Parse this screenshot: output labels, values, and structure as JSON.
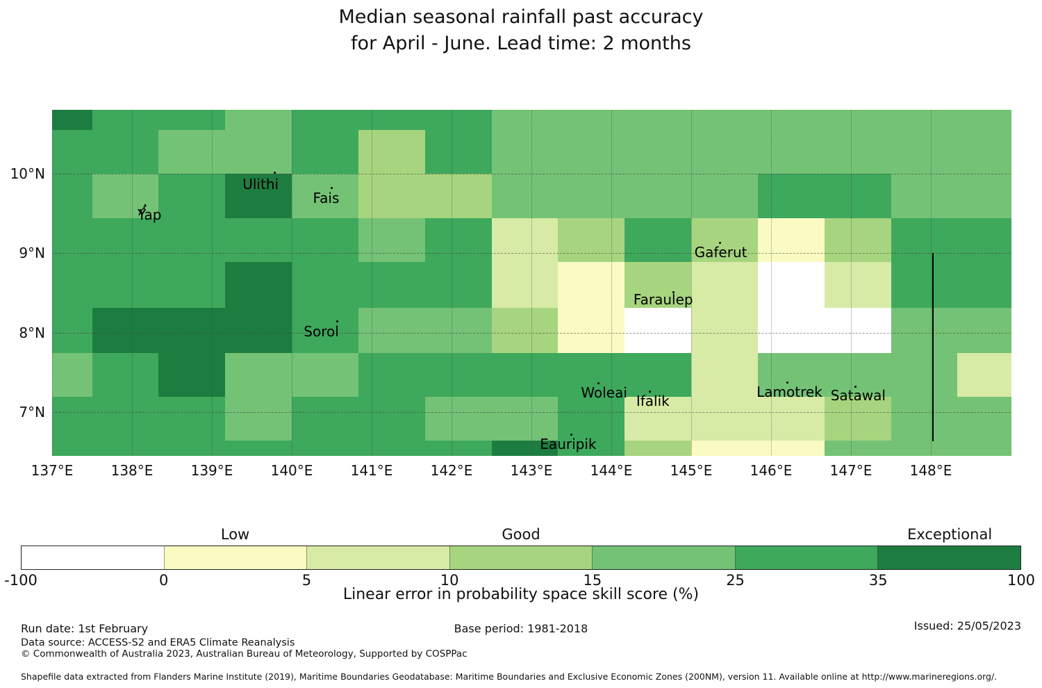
{
  "title": {
    "line1": "Median seasonal rainfall past accuracy",
    "line2": "for April - June. Lead time: 2 months"
  },
  "chart_data": {
    "type": "heatmap",
    "title": "Median seasonal rainfall past accuracy for April - June. Lead time: 2 months",
    "legend_label": "Linear error in probability space skill score (%)",
    "lon_range": [
      137.0,
      149.0
    ],
    "lat_range": [
      6.46,
      10.81
    ],
    "grid_on": true,
    "x_axis": {
      "tick_labels": [
        "137°E",
        "138°E",
        "139°E",
        "140°E",
        "141°E",
        "142°E",
        "143°E",
        "144°E",
        "145°E",
        "146°E",
        "147°E",
        "148°E"
      ],
      "tick_lons": [
        137,
        138,
        139,
        140,
        141,
        142,
        143,
        144,
        145,
        146,
        147,
        148
      ]
    },
    "y_axis": {
      "tick_labels": [
        "10°N",
        "9°N",
        "8°N",
        "7°N"
      ],
      "tick_lats": [
        10,
        9,
        8,
        7
      ]
    },
    "palette": [
      {
        "bin": "-100 to 0",
        "class": "Low",
        "color": "#ffffff"
      },
      {
        "bin": "0 to 5",
        "class": "Low",
        "color": "#f9fbc3"
      },
      {
        "bin": "5 to 10",
        "class": "Low",
        "color": "#d7eba6"
      },
      {
        "bin": "10 to 15",
        "class": "Good",
        "color": "#a7d57f"
      },
      {
        "bin": "15 to 25",
        "class": "Good",
        "color": "#74c276"
      },
      {
        "bin": "25 to 35",
        "class": "Good",
        "color": "#3ea85c"
      },
      {
        "bin": "35 to 100",
        "class": "Exceptional",
        "color": "#1d7d40"
      }
    ],
    "col_bounds_lon": [
      137.0,
      137.5,
      138.333,
      139.167,
      140.0,
      140.833,
      141.667,
      142.5,
      143.333,
      144.167,
      145.0,
      145.833,
      146.667,
      147.5,
      148.333,
      149.0
    ],
    "row_bounds_lat": [
      10.805,
      10.551,
      10.0,
      9.44,
      8.889,
      8.312,
      7.743,
      7.192,
      6.641,
      6.457
    ],
    "grid": [
      [
        6,
        5,
        5,
        4,
        5,
        5,
        5,
        4,
        4,
        4,
        4,
        4,
        4,
        4,
        4
      ],
      [
        5,
        5,
        4,
        4,
        5,
        3,
        5,
        4,
        4,
        4,
        4,
        4,
        4,
        4,
        4
      ],
      [
        5,
        4,
        5,
        6,
        4,
        3,
        3,
        4,
        4,
        4,
        4,
        5,
        5,
        4,
        4
      ],
      [
        5,
        5,
        5,
        5,
        5,
        4,
        5,
        2,
        3,
        5,
        3,
        1,
        3,
        5,
        5
      ],
      [
        5,
        5,
        5,
        6,
        5,
        5,
        5,
        2,
        1,
        3,
        2,
        0,
        2,
        5,
        5
      ],
      [
        5,
        6,
        6,
        6,
        5,
        4,
        4,
        3,
        1,
        0,
        2,
        0,
        0,
        4,
        4
      ],
      [
        4,
        5,
        6,
        4,
        4,
        5,
        5,
        5,
        5,
        5,
        2,
        4,
        4,
        4,
        2
      ],
      [
        5,
        5,
        5,
        4,
        5,
        5,
        4,
        4,
        5,
        2,
        2,
        2,
        3,
        4,
        4
      ],
      [
        5,
        5,
        5,
        5,
        5,
        5,
        5,
        6,
        5,
        3,
        1,
        1,
        4,
        4,
        4
      ]
    ],
    "islands": [
      {
        "name": "Ulithi",
        "lon": 139.61,
        "lat": 9.87,
        "dot_dx": 19,
        "dot_dy": -18,
        "marker": "dot"
      },
      {
        "name": "Fais",
        "lon": 140.43,
        "lat": 9.69,
        "dot_dx": 7,
        "dot_dy": -16,
        "marker": "dot"
      },
      {
        "name": "Yap",
        "lon": 138.22,
        "lat": 9.48,
        "dot_dx": -11,
        "dot_dy": -9,
        "marker": "squiggle"
      },
      {
        "name": "Gaferut",
        "lon": 145.37,
        "lat": 9.01,
        "dot_dx": -3,
        "dot_dy": -15,
        "marker": "dot"
      },
      {
        "name": "Faraulep",
        "lon": 144.65,
        "lat": 8.42,
        "dot_dx": 13,
        "dot_dy": -12,
        "marker": "dot"
      },
      {
        "name": "Sorol",
        "lon": 140.37,
        "lat": 8.01,
        "dot_dx": 21,
        "dot_dy": -16,
        "marker": "dot"
      },
      {
        "name": "Woleai",
        "lon": 143.91,
        "lat": 7.24,
        "dot_dx": -10,
        "dot_dy": -15,
        "marker": "dot"
      },
      {
        "name": "Ifalik",
        "lon": 144.52,
        "lat": 7.14,
        "dot_dx": -6,
        "dot_dy": -15,
        "marker": "dot"
      },
      {
        "name": "Lamotrek",
        "lon": 146.23,
        "lat": 7.25,
        "dot_dx": -4,
        "dot_dy": -15,
        "marker": "dot"
      },
      {
        "name": "Satawal",
        "lon": 147.09,
        "lat": 7.21,
        "dot_dx": -5,
        "dot_dy": -14,
        "marker": "dot"
      },
      {
        "name": "Eauripik",
        "lon": 143.46,
        "lat": 6.6,
        "dot_dx": 3,
        "dot_dy": -15,
        "marker": "dot"
      }
    ],
    "eez_line": {
      "lon": 148.02,
      "lat_from": 9.0,
      "lat_to": 6.63
    }
  },
  "colorbar": {
    "category_labels": [
      {
        "text": "Low",
        "segment": 1
      },
      {
        "text": "Good",
        "segment": 3
      },
      {
        "text": "Exceptional",
        "segment": 6
      }
    ],
    "tick_labels": [
      "-100",
      "0",
      "5",
      "10",
      "15",
      "25",
      "35",
      "100"
    ],
    "axis_label": "Linear error in probability space skill score (%)"
  },
  "footer": {
    "run_date": "Run date: 1st February",
    "base_period": "Base period: 1981-2018",
    "issued": "Issued: 25/05/2023",
    "data_source": "Data source: ACCESS-S2 and ERA5 Climate Reanalysis",
    "copyright": "© Commonwealth of Australia 2023, Australian Bureau of Meteorology, Supported by COSPPac",
    "shapefile": "Shapefile data extracted from Flanders Marine Institute (2019), Maritime Boundaries Geodatabase: Maritime Boundaries and Exclusive Economic Zones (200NM), version 11. Available online at http://www.marineregions.org/."
  }
}
